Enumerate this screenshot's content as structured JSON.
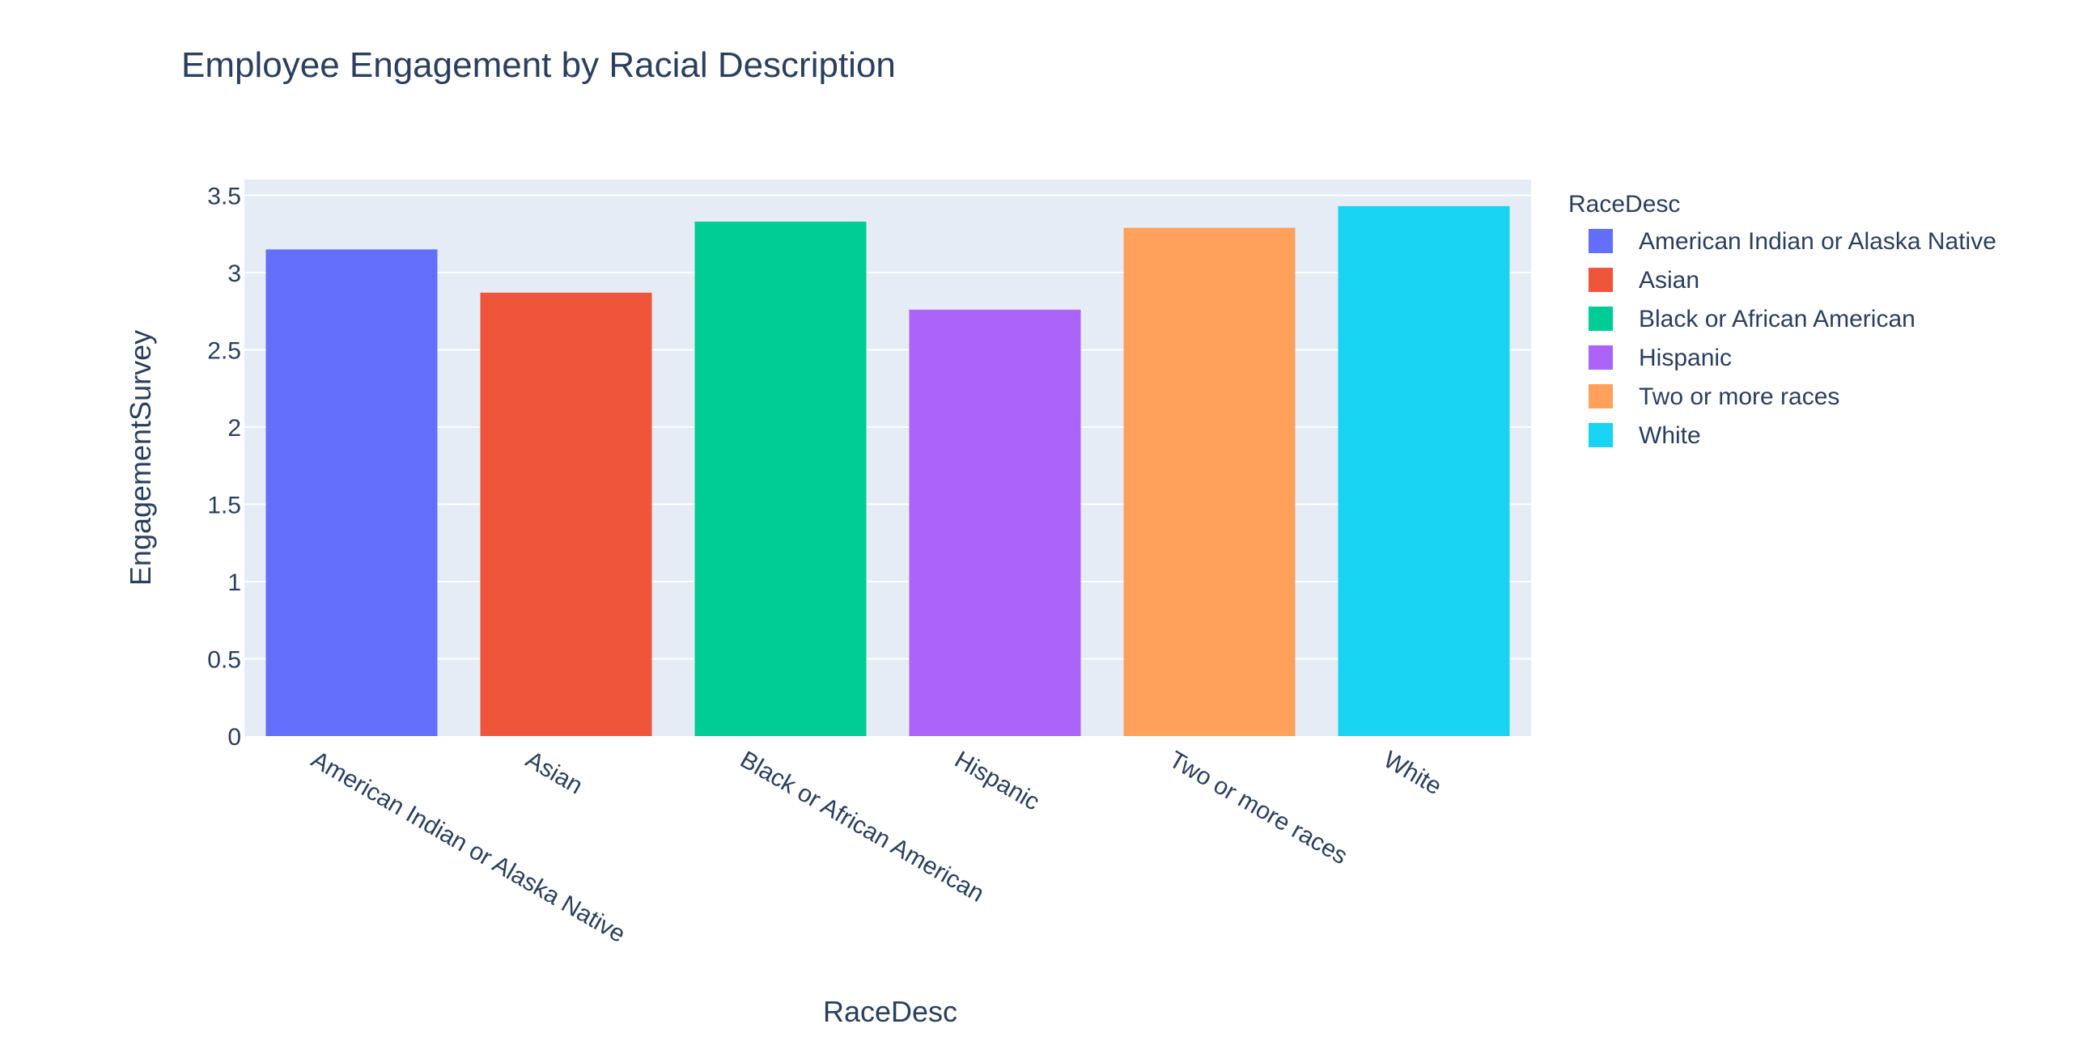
{
  "chart_data": {
    "type": "bar",
    "title": "Employee Engagement by Racial Description",
    "xlabel": "RaceDesc",
    "ylabel": "EngagementSurvey",
    "categories": [
      "American Indian or Alaska Native",
      "Asian",
      "Black or African American",
      "Hispanic",
      "Two or more races",
      "White"
    ],
    "values": [
      3.15,
      2.87,
      3.33,
      2.76,
      3.29,
      3.43
    ],
    "colors": [
      "#636efa",
      "#ef553b",
      "#00cc96",
      "#ab63fa",
      "#ffa15a",
      "#19d3f3"
    ],
    "ylim": [
      0,
      3.6
    ],
    "yticks": [
      0,
      0.5,
      1,
      1.5,
      2,
      2.5,
      3,
      3.5
    ],
    "ytick_labels": [
      "0",
      "0.5",
      "1",
      "1.5",
      "2",
      "2.5",
      "3",
      "3.5"
    ],
    "grid": true,
    "plot_background": "#e5ecf6",
    "legend": {
      "title": "RaceDesc",
      "placement": "right",
      "entries": [
        "American Indian or Alaska Native",
        "Asian",
        "Black or African American",
        "Hispanic",
        "Two or more races",
        "White"
      ]
    }
  }
}
